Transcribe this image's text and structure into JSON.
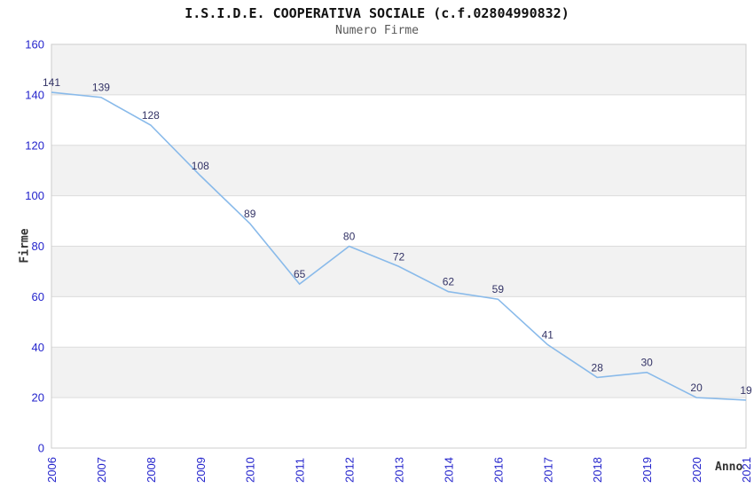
{
  "chart_data": {
    "type": "line",
    "title": "I.S.I.D.E. COOPERATIVA SOCIALE (c.f.02804990832)",
    "subtitle": "Numero Firme",
    "xlabel": "Anno",
    "ylabel": "Firme",
    "categories": [
      "2006",
      "2007",
      "2008",
      "2009",
      "2010",
      "2011",
      "2012",
      "2013",
      "2014",
      "2016",
      "2017",
      "2018",
      "2019",
      "2020",
      "2021"
    ],
    "series": [
      {
        "name": "Numero Firme",
        "values": [
          141,
          139,
          128,
          108,
          89,
          65,
          80,
          72,
          62,
          59,
          41,
          28,
          30,
          20,
          19
        ]
      }
    ],
    "ylim": [
      0,
      160
    ],
    "yticks": [
      0,
      20,
      40,
      60,
      80,
      100,
      120,
      140,
      160
    ],
    "grid": "alternating-horizontal-bands",
    "legend": "none",
    "data_labels": true,
    "colors": {
      "line": "#89baea",
      "tick_label": "#2424cc",
      "data_label": "#333366",
      "band_fill": "#f2f2f2",
      "band_edge": "#dcdcdc",
      "plot_border": "#cccccc",
      "title": "#111111",
      "subtitle": "#595959",
      "axis_title": "#333333"
    }
  }
}
